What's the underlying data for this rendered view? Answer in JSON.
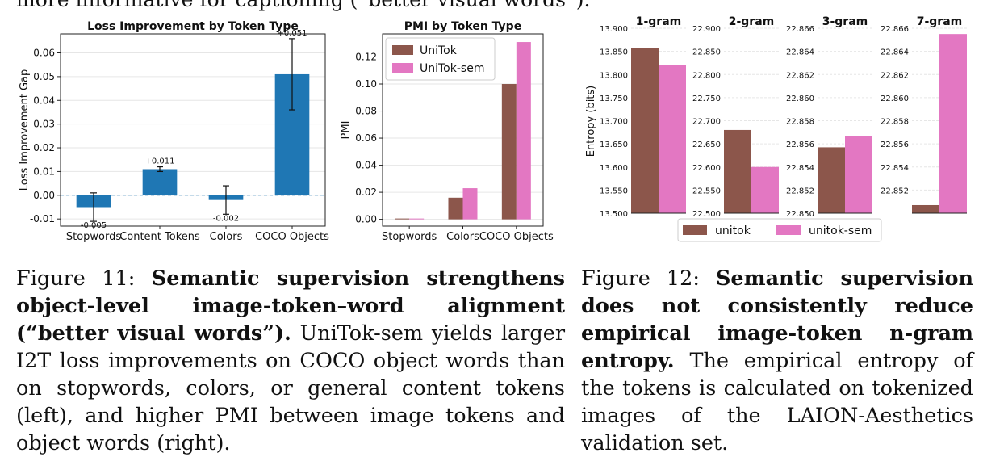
{
  "top_text": "more informative for captioning (“better visual words”).",
  "fig11": {
    "label": "Figure 11:",
    "bold": "Semantic supervision strengthens object-level image-token–word alignment (“better visual words”).",
    "body": "UniTok-sem yields larger I2T loss improvements on COCO object words than on stopwords, colors, or general content tokens (left), and higher PMI between image tokens and object words (right)."
  },
  "fig12": {
    "label": "Figure 12:",
    "bold": "Semantic supervision does not consistently reduce empirical image-token n-gram entropy.",
    "body": "The empirical entropy of the tokens is calculated on tokenized images of the LAION-Aesthetics validation set."
  },
  "colors": {
    "blue": "#1f77b4",
    "brown": "#8c564b",
    "pink": "#e377c2"
  },
  "chart_data": [
    {
      "type": "bar",
      "title": "Loss Improvement by Token Type",
      "xlabel": "",
      "ylabel": "Loss Improvement Gap",
      "categories": [
        "Stopwords",
        "Content Tokens",
        "Colors",
        "COCO Objects"
      ],
      "values": [
        -0.005,
        0.011,
        -0.002,
        0.051
      ],
      "error": [
        0.006,
        0.001,
        0.006,
        0.015
      ],
      "value_labels": [
        "-0.005",
        "+0.011",
        "-0.002",
        "+0.051"
      ],
      "ylim": [
        -0.013,
        0.068
      ],
      "yticks": [
        -0.01,
        0.0,
        0.01,
        0.02,
        0.03,
        0.04,
        0.05,
        0.06
      ],
      "ytick_labels": [
        "-0.01",
        "0.00",
        "0.01",
        "0.02",
        "0.03",
        "0.04",
        "0.05",
        "0.06"
      ],
      "grid": true
    },
    {
      "type": "bar",
      "title": "PMI by Token Type",
      "xlabel": "",
      "ylabel": "PMI",
      "categories": [
        "Stopwords",
        "Colors",
        "COCO Objects"
      ],
      "series": [
        {
          "name": "UniTok",
          "values": [
            0.0,
            0.016,
            0.1
          ]
        },
        {
          "name": "UniTok-sem",
          "values": [
            0.0,
            0.023,
            0.131
          ]
        }
      ],
      "ylim": [
        -0.005,
        0.137
      ],
      "yticks": [
        0.0,
        0.02,
        0.04,
        0.06,
        0.08,
        0.1,
        0.12
      ],
      "ytick_labels": [
        "0.00",
        "0.02",
        "0.04",
        "0.06",
        "0.08",
        "0.10",
        "0.12"
      ],
      "legend": "top-left",
      "grid": true
    },
    {
      "type": "bar",
      "ylabel": "Entropy (bits)",
      "legend": "bottom-center",
      "legend_entries": [
        "unitok",
        "unitok-sem"
      ],
      "grid": true,
      "panels": [
        {
          "title": "1-gram",
          "ylim": [
            13.5,
            13.9
          ],
          "values": [
            13.858,
            13.82
          ],
          "yticks": [
            13.5,
            13.55,
            13.6,
            13.65,
            13.7,
            13.75,
            13.8,
            13.85,
            13.9
          ],
          "ytick_labels": [
            "13.500",
            "13.550",
            "13.600",
            "13.650",
            "13.700",
            "13.750",
            "13.800",
            "13.850",
            "13.900"
          ]
        },
        {
          "title": "2-gram",
          "ylim": [
            22.5,
            22.9
          ],
          "values": [
            22.68,
            22.6
          ],
          "yticks": [
            22.5,
            22.55,
            22.6,
            22.65,
            22.7,
            22.75,
            22.8,
            22.85,
            22.9
          ],
          "ytick_labels": [
            "22.500",
            "22.550",
            "22.600",
            "22.650",
            "22.700",
            "22.750",
            "22.800",
            "22.850",
            "22.900"
          ]
        },
        {
          "title": "3-gram",
          "ylim": [
            22.85,
            22.866
          ],
          "values": [
            22.8557,
            22.8567
          ],
          "yticks": [
            22.85,
            22.852,
            22.854,
            22.856,
            22.858,
            22.86,
            22.862,
            22.864,
            22.866
          ],
          "ytick_labels": [
            "22.850",
            "22.852",
            "22.854",
            "22.856",
            "22.858",
            "22.860",
            "22.862",
            "22.864",
            "22.866"
          ]
        },
        {
          "title": "7-gram",
          "ylim": [
            22.85,
            22.866
          ],
          "values": [
            22.8507,
            22.8655
          ],
          "yticks": [
            22.852,
            22.854,
            22.856,
            22.858,
            22.86,
            22.862,
            22.864,
            22.866
          ],
          "ytick_labels": [
            "22.852",
            "22.854",
            "22.856",
            "22.858",
            "22.860",
            "22.862",
            "22.864",
            "22.866"
          ]
        }
      ]
    }
  ]
}
